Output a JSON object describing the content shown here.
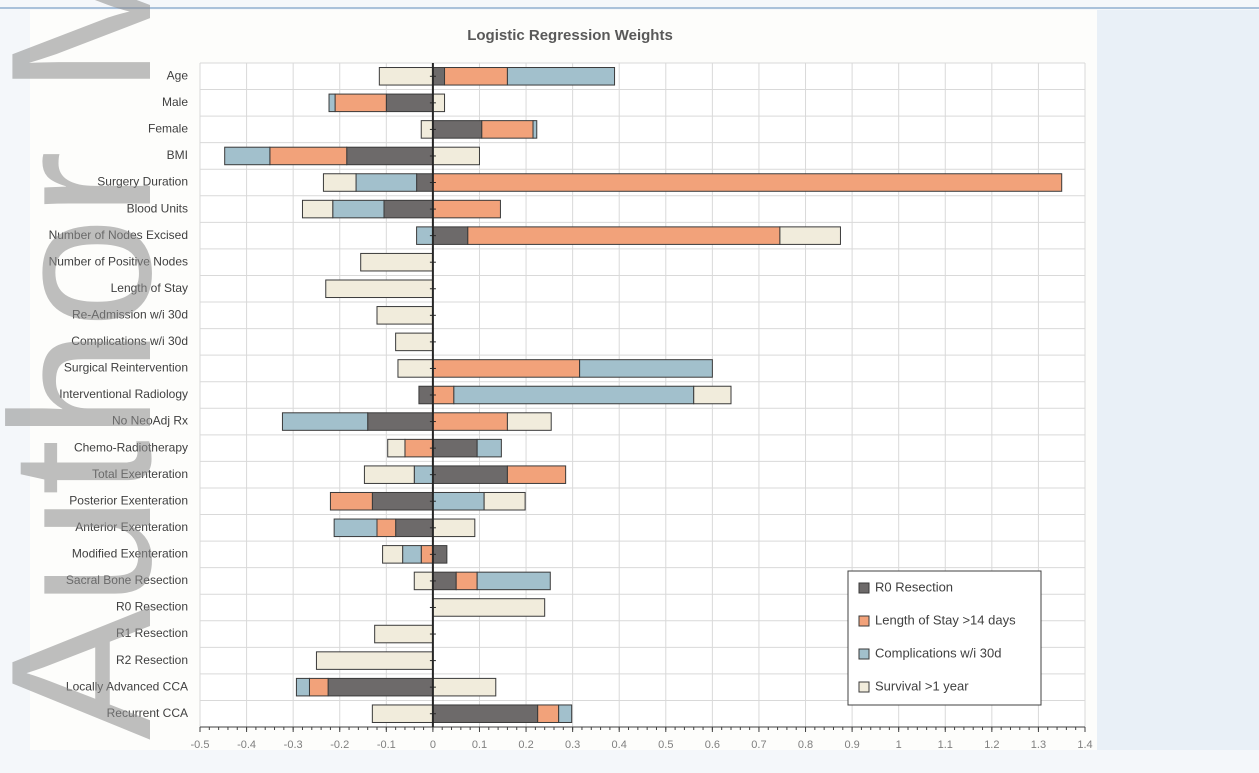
{
  "watermark": "Author Manuscript",
  "chart_data": {
    "type": "bar",
    "orientation": "horizontal",
    "stacked": true,
    "title": "Logistic Regression Weights",
    "categories": [
      "Age",
      "Male",
      "Female",
      "BMI",
      "Surgery Duration",
      "Blood Units",
      "Number of Nodes Excised",
      "Number of Positive Nodes",
      "Length of Stay",
      "Re-Admission w/i 30d",
      "Complications w/i 30d",
      "Surgical Reintervention",
      "Interventional Radiology",
      "No NeoAdj Rx",
      "Chemo-Radiotherapy",
      "Total Exenteration",
      "Posterior Exenteration",
      "Anterior Exenteration",
      "Modified Exenteration",
      "Sacral Bone Resection",
      "R0 Resection",
      "R1 Resection",
      "R2 Resection",
      "Locally Advanced CCA",
      "Recurrent CCA"
    ],
    "series": [
      {
        "name": "R0 Resection",
        "color": "#6d6a6a",
        "values": [
          0.025,
          -0.1,
          0.105,
          -0.185,
          -0.035,
          -0.105,
          0.075,
          0,
          0,
          0,
          0,
          0,
          -0.03,
          -0.14,
          0.095,
          0.16,
          -0.13,
          -0.08,
          0.03,
          0.05,
          0,
          0,
          0,
          -0.225,
          0.225
        ]
      },
      {
        "name": "Length of Stay >14 days",
        "color": "#f2a27a",
        "values": [
          0.135,
          -0.11,
          0.11,
          -0.165,
          1.35,
          0.145,
          0.67,
          0,
          0,
          0,
          0,
          0.315,
          0.045,
          0.16,
          -0.06,
          0.125,
          -0.09,
          -0.04,
          -0.025,
          0.045,
          0,
          0,
          0,
          -0.04,
          0.045
        ]
      },
      {
        "name": "Complications w/i 30d",
        "color": "#a2c0cc",
        "values": [
          0.23,
          -0.013,
          0.008,
          -0.097,
          -0.13,
          -0.11,
          -0.035,
          0,
          0,
          0,
          0,
          0.285,
          0.515,
          -0.183,
          0.052,
          -0.04,
          0.11,
          -0.092,
          -0.04,
          0.157,
          0,
          0,
          0,
          -0.028,
          0.028
        ]
      },
      {
        "name": "Survival >1 year",
        "color": "#f1ecdc",
        "values": [
          -0.115,
          0.025,
          -0.025,
          0.1,
          -0.07,
          -0.065,
          0.13,
          -0.155,
          -0.23,
          -0.12,
          -0.08,
          -0.075,
          0.08,
          0.094,
          -0.037,
          -0.107,
          0.088,
          0.09,
          -0.043,
          -0.04,
          0.24,
          -0.125,
          -0.25,
          0.135,
          -0.13
        ]
      }
    ],
    "xlim": [
      -0.5,
      1.4
    ],
    "xticks": [
      -0.5,
      -0.4,
      -0.3,
      -0.2,
      -0.1,
      0,
      0.1,
      0.2,
      0.3,
      0.4,
      0.5,
      0.6,
      0.7,
      0.8,
      0.9,
      1,
      1.1,
      1.2,
      1.3,
      1.4
    ],
    "grid": true,
    "legend": "lower right"
  }
}
